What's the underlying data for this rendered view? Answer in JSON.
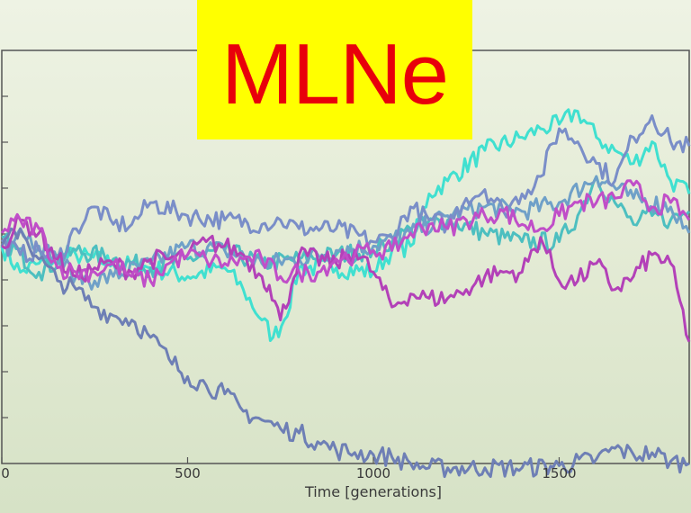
{
  "banner": {
    "text": "MLNe",
    "background": "#ffff00",
    "color": "#e8000b"
  },
  "chart_data": {
    "type": "line",
    "title": "",
    "xlabel": "Time [generations]",
    "ylabel": "",
    "xlim": [
      0,
      1850
    ],
    "ylim": [
      0,
      9.5
    ],
    "xticks": [
      0,
      500,
      1000,
      1500
    ],
    "xtick_labels": [
      "0",
      "500",
      "1000",
      "1500"
    ],
    "grid": false,
    "series": [
      {
        "color": "#40e0d0",
        "x": [
          0,
          50,
          100,
          200,
          300,
          400,
          500,
          600,
          650,
          700,
          730,
          760,
          800,
          900,
          1000,
          1050,
          1100,
          1150,
          1200,
          1300,
          1400,
          1450,
          1500,
          1550,
          1600,
          1650,
          1700,
          1750,
          1800,
          1850
        ],
        "y": [
          5.0,
          4.4,
          4.6,
          4.8,
          4.6,
          4.5,
          4.3,
          4.5,
          4.0,
          3.3,
          2.9,
          3.3,
          4.5,
          4.5,
          4.4,
          4.9,
          5.0,
          6.2,
          6.5,
          7.2,
          7.5,
          7.7,
          7.8,
          8.1,
          7.5,
          7.2,
          6.9,
          7.4,
          6.5,
          6.2
        ]
      },
      {
        "color": "#4dbfc0",
        "x": [
          0,
          100,
          200,
          300,
          400,
          500,
          600,
          700,
          800,
          900,
          1000,
          1050,
          1100,
          1200,
          1300,
          1400,
          1500,
          1550,
          1600,
          1650,
          1700,
          1750,
          1800,
          1850
        ],
        "y": [
          5.2,
          4.4,
          4.9,
          4.7,
          4.5,
          4.7,
          4.9,
          4.6,
          4.7,
          4.8,
          4.9,
          5.1,
          5.4,
          5.6,
          5.3,
          5.1,
          5.1,
          5.7,
          6.6,
          6.0,
          5.5,
          5.7,
          5.6,
          5.8
        ]
      },
      {
        "color": "#6fa0c8",
        "x": [
          0,
          50,
          100,
          150,
          200,
          250,
          300,
          400,
          500,
          600,
          700,
          800,
          900,
          1000,
          1100,
          1200,
          1300,
          1400,
          1500,
          1600,
          1700,
          1800,
          1850
        ],
        "y": [
          5.1,
          5.4,
          5.0,
          4.7,
          4.3,
          4.2,
          4.3,
          4.6,
          5.0,
          4.9,
          4.6,
          4.7,
          4.9,
          5.0,
          5.3,
          5.7,
          5.9,
          5.8,
          6.0,
          6.6,
          6.1,
          5.9,
          5.3
        ]
      },
      {
        "color": "#7a8ec8",
        "x": [
          0,
          50,
          100,
          150,
          200,
          250,
          300,
          350,
          400,
          500,
          600,
          700,
          750,
          800,
          900,
          1000,
          1050,
          1100,
          1150,
          1200,
          1250,
          1300,
          1350,
          1400,
          1450,
          1500,
          1550,
          1600,
          1650,
          1700,
          1750,
          1800,
          1850
        ],
        "y": [
          5.1,
          4.8,
          4.9,
          4.7,
          5.4,
          5.9,
          5.5,
          5.5,
          6.0,
          5.7,
          5.6,
          5.5,
          5.6,
          5.4,
          5.4,
          5.1,
          5.2,
          5.9,
          5.6,
          5.5,
          6.1,
          6.3,
          5.8,
          6.2,
          6.6,
          7.7,
          7.4,
          6.9,
          6.5,
          7.5,
          8.0,
          7.4,
          7.3
        ]
      },
      {
        "color": "#6e7fb5",
        "x": [
          0,
          50,
          100,
          150,
          200,
          250,
          300,
          350,
          400,
          450,
          500,
          550,
          600,
          650,
          700,
          750,
          800,
          850,
          900,
          950,
          1000,
          1050,
          1100,
          1150,
          1200,
          1300,
          1400,
          1500,
          1600,
          1650,
          1700,
          1750,
          1800,
          1850
        ],
        "y": [
          5.0,
          5.4,
          4.7,
          4.2,
          4.0,
          3.6,
          3.4,
          3.3,
          2.9,
          2.4,
          2.0,
          1.8,
          1.6,
          1.2,
          1.0,
          0.8,
          0.7,
          0.5,
          0.3,
          0.25,
          0.2,
          0.15,
          0.0,
          -0.1,
          -0.1,
          -0.1,
          -0.1,
          -0.05,
          0.1,
          0.35,
          0.2,
          0.25,
          0.05,
          0.0
        ]
      },
      {
        "color": "#b341b8",
        "x": [
          0,
          50,
          100,
          150,
          200,
          250,
          300,
          350,
          400,
          450,
          500,
          550,
          600,
          650,
          700,
          720,
          750,
          780,
          800,
          900,
          950,
          1000,
          1050,
          1100,
          1150,
          1200,
          1250,
          1300,
          1350,
          1400,
          1450,
          1500,
          1550,
          1600,
          1650,
          1700,
          1750,
          1800,
          1850
        ],
        "y": [
          5.0,
          5.6,
          5.3,
          4.7,
          4.3,
          4.5,
          4.6,
          4.4,
          4.7,
          4.7,
          4.8,
          5.1,
          5.0,
          4.8,
          4.3,
          4.1,
          3.3,
          4.1,
          4.8,
          4.6,
          4.9,
          4.4,
          3.6,
          3.9,
          3.8,
          3.8,
          4.0,
          4.3,
          4.4,
          4.4,
          5.2,
          4.2,
          4.2,
          4.6,
          4.0,
          4.3,
          4.8,
          4.6,
          2.8
        ]
      },
      {
        "color": "#c04ec8",
        "x": [
          0,
          50,
          100,
          150,
          200,
          250,
          300,
          350,
          400,
          450,
          500,
          550,
          600,
          650,
          700,
          750,
          800,
          850,
          900,
          950,
          1000,
          1050,
          1100,
          1150,
          1200,
          1250,
          1300,
          1350,
          1400,
          1450,
          1500,
          1550,
          1600,
          1650,
          1700,
          1750,
          1800,
          1850
        ],
        "y": [
          5.3,
          5.6,
          5.4,
          4.5,
          4.4,
          4.4,
          4.6,
          4.3,
          4.2,
          4.6,
          4.8,
          4.7,
          4.6,
          4.7,
          4.7,
          4.3,
          4.4,
          4.4,
          4.7,
          4.8,
          4.9,
          4.9,
          5.3,
          5.5,
          5.4,
          5.6,
          5.7,
          5.8,
          5.5,
          5.4,
          5.7,
          6.0,
          6.0,
          6.1,
          6.4,
          5.9,
          6.0,
          5.6
        ]
      }
    ]
  }
}
